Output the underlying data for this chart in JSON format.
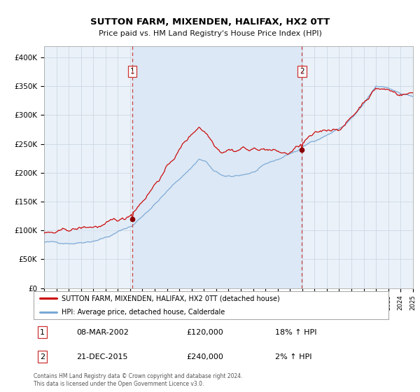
{
  "title": "SUTTON FARM, MIXENDEN, HALIFAX, HX2 0TT",
  "subtitle": "Price paid vs. HM Land Registry's House Price Index (HPI)",
  "legend_line1": "SUTTON FARM, MIXENDEN, HALIFAX, HX2 0TT (detached house)",
  "legend_line2": "HPI: Average price, detached house, Calderdale",
  "annotation1_date": "08-MAR-2002",
  "annotation1_price": "£120,000",
  "annotation1_hpi": "18% ↑ HPI",
  "annotation2_date": "21-DEC-2015",
  "annotation2_price": "£240,000",
  "annotation2_hpi": "2% ↑ HPI",
  "footer": "Contains HM Land Registry data © Crown copyright and database right 2024.\nThis data is licensed under the Open Government Licence v3.0.",
  "red_line_color": "#cc0000",
  "blue_line_color": "#7aa8d4",
  "fill_color": "#dce8f5",
  "chart_bg_color": "#eaf1f8",
  "grid_color": "#c8d4e0",
  "dot_color": "#880000",
  "vline_color": "#cc4444",
  "annot_box_edge": "#cc3333",
  "ylim_min": 0,
  "ylim_max": 420000,
  "year_start": 1995,
  "year_end": 2025,
  "sale1_year": 2002,
  "sale1_month": 2,
  "sale1_value": 120000,
  "sale2_year": 2015,
  "sale2_month": 11,
  "sale2_value": 240000
}
